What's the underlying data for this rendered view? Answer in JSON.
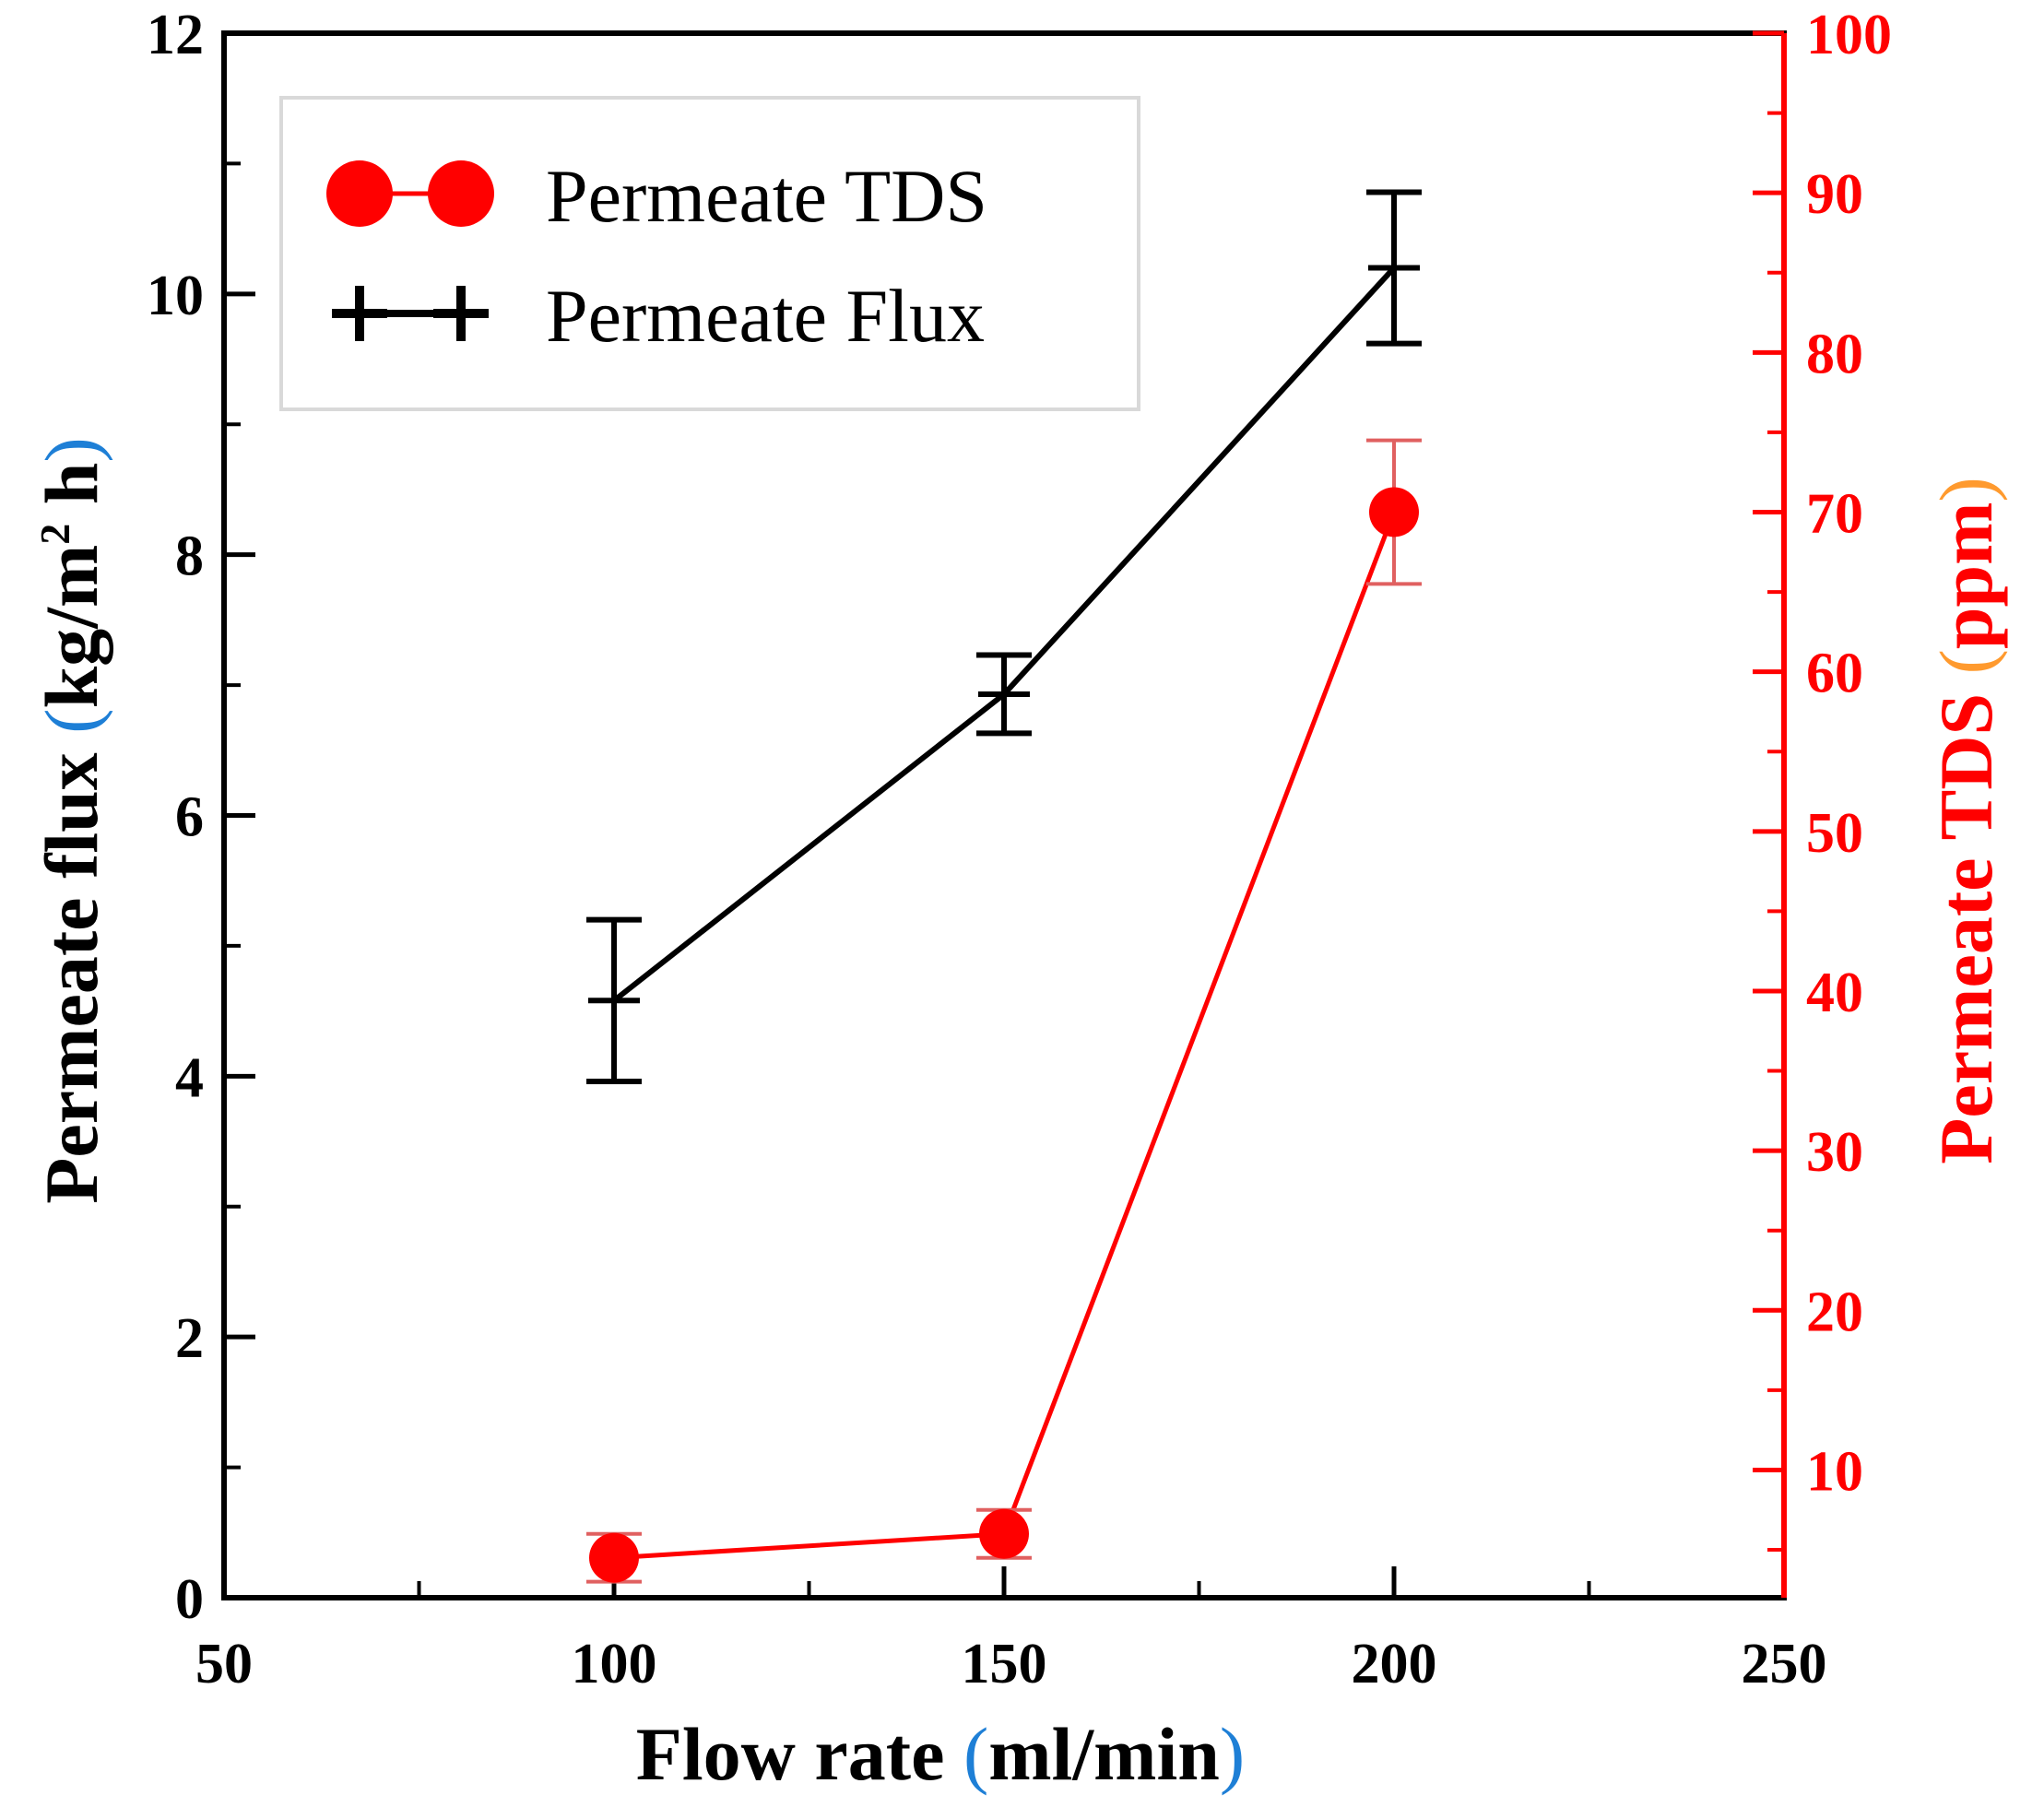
{
  "chart_data": {
    "type": "line",
    "title": "",
    "xlabel": "Flow rate (ml/min)",
    "xlabel_parts": [
      "Flow rate ",
      "(",
      "ml/min",
      ")"
    ],
    "xlim": [
      50,
      250
    ],
    "xticks": [
      "50",
      "100",
      "150",
      "200",
      "250"
    ],
    "ylabel_left_parts": [
      "Permeate flux ",
      "(",
      "kg/m",
      "2",
      " h",
      ")"
    ],
    "ylim_left": [
      0,
      12
    ],
    "yticks_left": [
      "0",
      "2",
      "4",
      "6",
      "8",
      "10",
      "12"
    ],
    "ylabel_right_parts": [
      "Permeate TDS ",
      "(",
      "ppm",
      ")"
    ],
    "ylim_right": [
      2,
      100
    ],
    "yticks_right": [
      "10",
      "20",
      "30",
      "40",
      "50",
      "60",
      "70",
      "80",
      "90",
      "100"
    ],
    "legend_position": "top-left",
    "series": [
      {
        "name": "Permeate TDS",
        "axis": "right",
        "color": "#ff0000",
        "marker": "circle",
        "x": [
          100,
          150,
          200
        ],
        "values": [
          4.5,
          6,
          70
        ],
        "errors": [
          1.5,
          1.5,
          4.5
        ]
      },
      {
        "name": "Permeate Flux",
        "axis": "left",
        "color": "#000000",
        "marker": "plus",
        "x": [
          100,
          150,
          200
        ],
        "values": [
          4.58,
          6.93,
          10.2
        ],
        "errors": [
          0.62,
          0.3,
          0.58
        ]
      }
    ],
    "colors": {
      "axis_left": "#000000",
      "axis_right": "#ff0000",
      "paren_accent": "#1e7fd6"
    }
  }
}
